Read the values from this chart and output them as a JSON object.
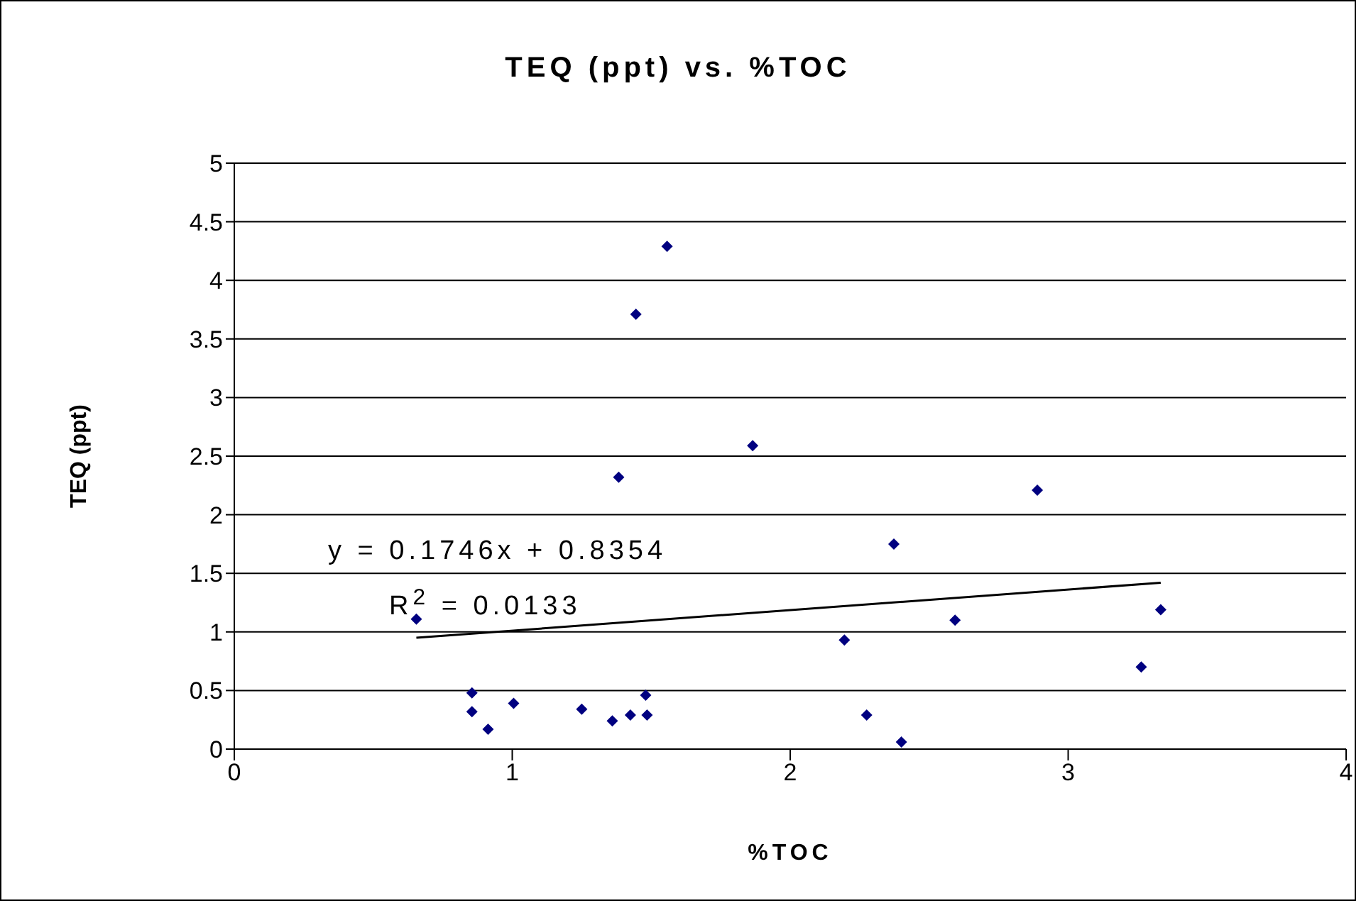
{
  "chart_data": {
    "type": "scatter",
    "title": "TEQ (ppt) vs. %TOC",
    "xlabel": "%TOC",
    "ylabel": "TEQ (ppt)",
    "xlim": [
      0,
      4
    ],
    "xticks": [
      0,
      1,
      2,
      3,
      4
    ],
    "ylim": [
      0,
      5
    ],
    "yticks": [
      0,
      0.5,
      1,
      1.5,
      2,
      2.5,
      3,
      3.5,
      4,
      4.5,
      5
    ],
    "grid": "y",
    "series": [
      {
        "color": "#000080",
        "marker": "diamond",
        "x": [
          0.655,
          0.855,
          0.855,
          0.913,
          1.005,
          1.25,
          1.36,
          1.425,
          1.48,
          1.485,
          2.195,
          2.275,
          2.4,
          1.557,
          1.445,
          1.865,
          1.383,
          2.373,
          2.889,
          2.593,
          3.263,
          3.333
        ],
        "values": [
          1.11,
          0.48,
          0.32,
          0.17,
          0.39,
          0.34,
          0.24,
          0.29,
          0.46,
          0.29,
          0.93,
          0.29,
          0.06,
          4.29,
          3.71,
          2.59,
          2.32,
          1.75,
          2.21,
          1.1,
          0.7,
          1.19
        ]
      },
      {
        "type": "line",
        "color": "#000000",
        "marker": "none",
        "line_style": "solid",
        "x": [
          0.655,
          3.333
        ],
        "values": [
          0.95,
          1.42
        ]
      }
    ],
    "annotations": [
      "y = 0.1746x + 0.8354",
      "R$^{2}$ = 0.0133"
    ]
  }
}
